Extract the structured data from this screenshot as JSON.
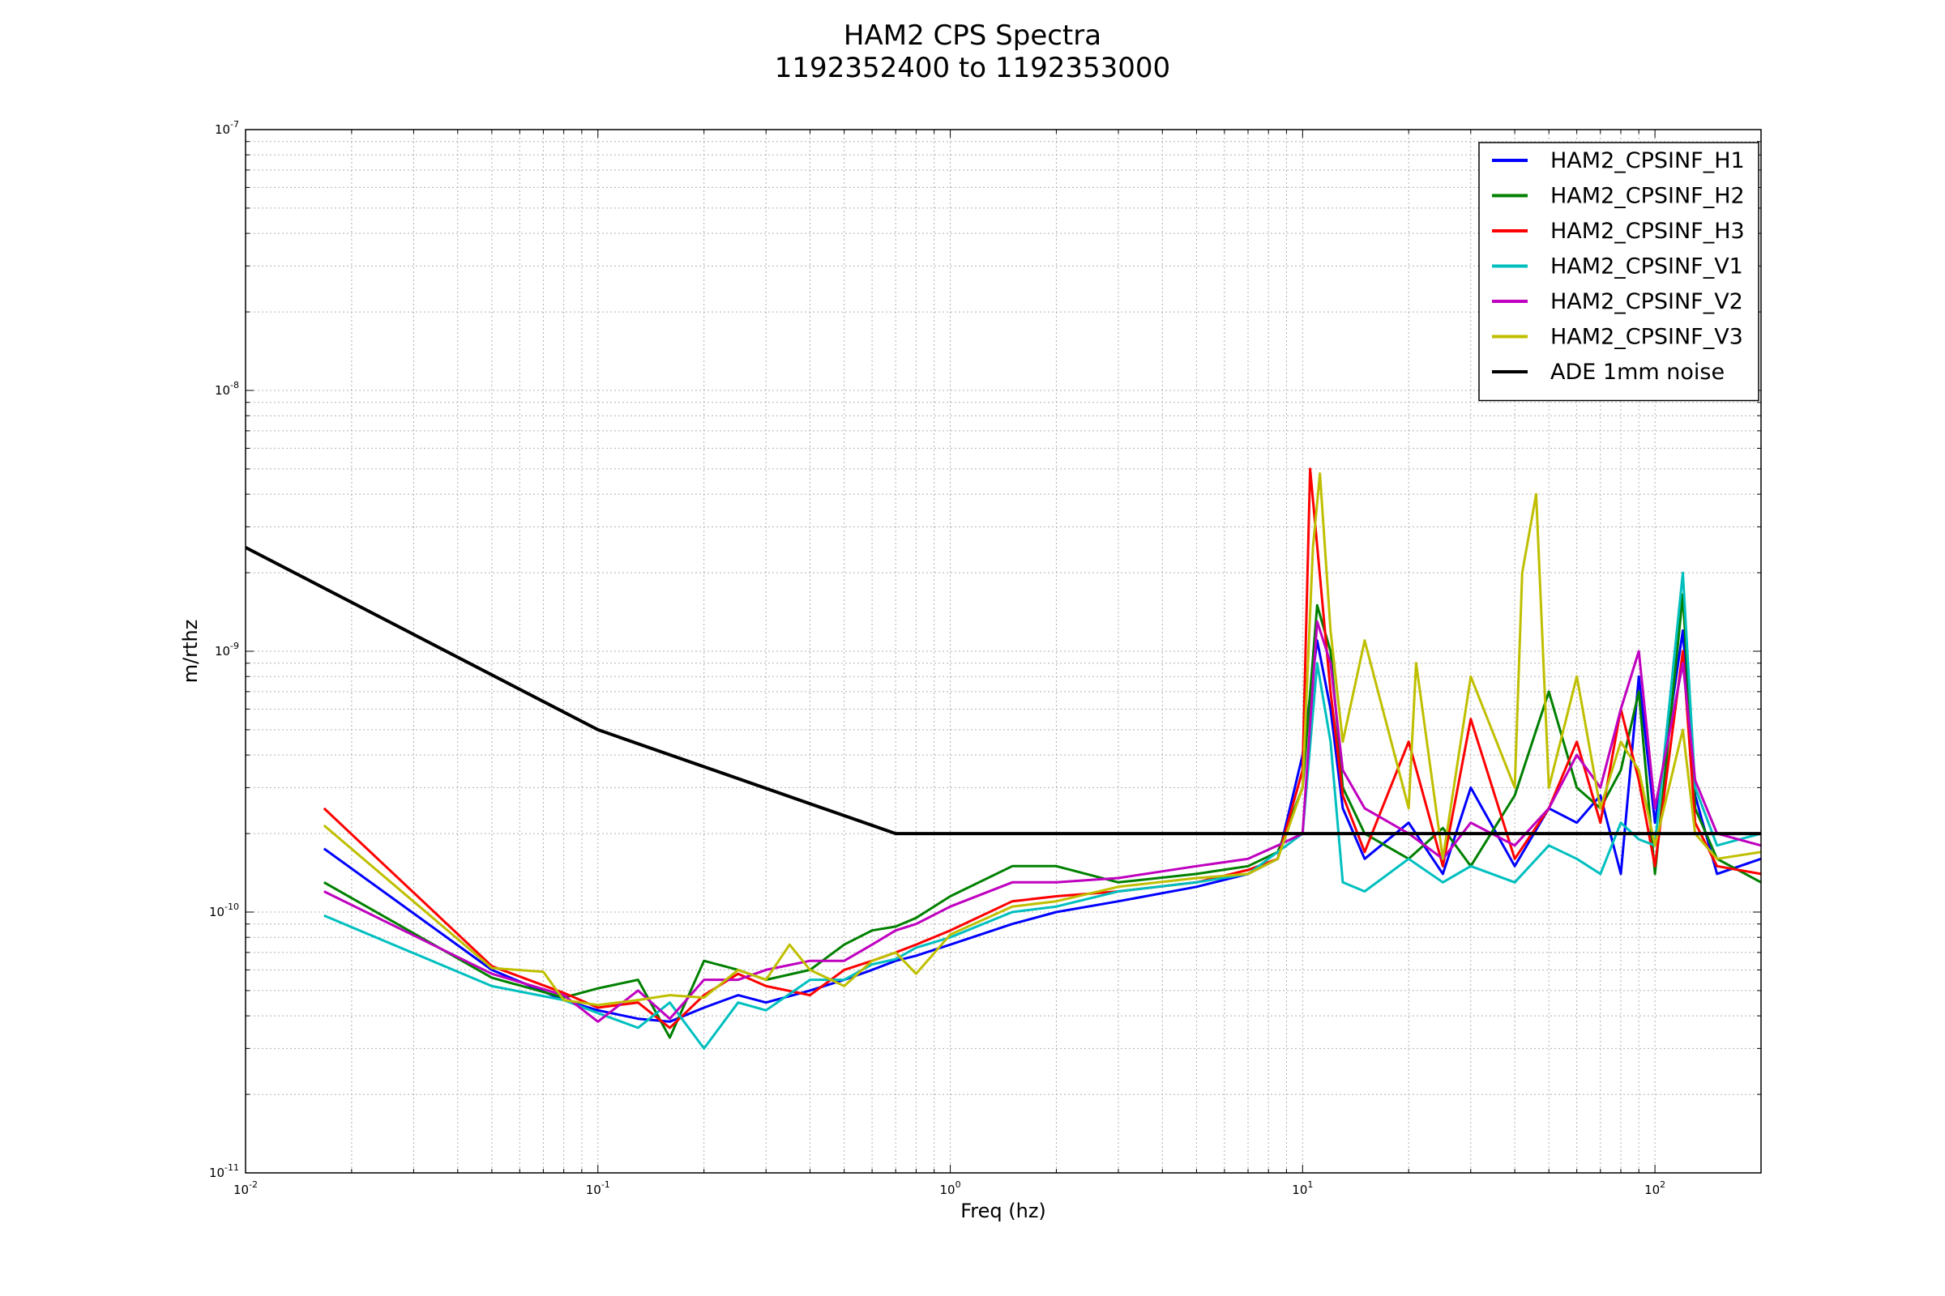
{
  "chart_data": {
    "type": "line",
    "title": "HAM2 CPS Spectra",
    "subtitle": "1192352400 to 1192353000",
    "xlabel": "Freq (hz)",
    "ylabel": "m/rthz",
    "xscale": "log",
    "yscale": "log",
    "xlim": [
      0.01,
      200
    ],
    "ylim": [
      1e-11,
      1e-07
    ],
    "x_ticks": [
      {
        "value": 0.01,
        "base": "10",
        "exp": "-2"
      },
      {
        "value": 0.1,
        "base": "10",
        "exp": "-1"
      },
      {
        "value": 1,
        "base": "10",
        "exp": "0"
      },
      {
        "value": 10,
        "base": "10",
        "exp": "1"
      },
      {
        "value": 100,
        "base": "10",
        "exp": "2"
      }
    ],
    "y_ticks": [
      {
        "value": 1e-11,
        "base": "10",
        "exp": "-11"
      },
      {
        "value": 1e-10,
        "base": "10",
        "exp": "-10"
      },
      {
        "value": 1e-09,
        "base": "10",
        "exp": "-9"
      },
      {
        "value": 1e-08,
        "base": "10",
        "exp": "-8"
      },
      {
        "value": 1e-07,
        "base": "10",
        "exp": "-7"
      }
    ],
    "grid": true,
    "legend_position": "top-right",
    "series": [
      {
        "name": "HAM2_CPSINF_H1",
        "color": "#0000ff",
        "x": [
          0.0167,
          0.05,
          0.08,
          0.1,
          0.13,
          0.16,
          0.2,
          0.25,
          0.3,
          0.4,
          0.5,
          0.6,
          0.7,
          0.8,
          1.0,
          1.5,
          2,
          3,
          5,
          7,
          8.5,
          10,
          11,
          12,
          13,
          15,
          20,
          25,
          30,
          40,
          50,
          60,
          70,
          80,
          90,
          100,
          120,
          130,
          150,
          200
        ],
        "y": [
          1.75e-10,
          6e-11,
          4.6e-11,
          4.2e-11,
          3.9e-11,
          3.8e-11,
          4.3e-11,
          4.8e-11,
          4.5e-11,
          5e-11,
          5.5e-11,
          6e-11,
          6.5e-11,
          6.8e-11,
          7.5e-11,
          9e-11,
          1e-10,
          1.1e-10,
          1.25e-10,
          1.4e-10,
          1.6e-10,
          4e-10,
          1.1e-09,
          6e-10,
          2.5e-10,
          1.6e-10,
          2.2e-10,
          1.4e-10,
          3e-10,
          1.5e-10,
          2.5e-10,
          2.2e-10,
          2.8e-10,
          1.4e-10,
          8e-10,
          2.2e-10,
          1.2e-09,
          2.8e-10,
          1.4e-10,
          1.6e-10
        ]
      },
      {
        "name": "HAM2_CPSINF_H2",
        "color": "#008000",
        "x": [
          0.0167,
          0.05,
          0.08,
          0.1,
          0.13,
          0.16,
          0.2,
          0.25,
          0.3,
          0.4,
          0.5,
          0.6,
          0.7,
          0.8,
          1.0,
          1.5,
          2,
          3,
          5,
          7,
          8.5,
          10,
          11,
          12,
          13,
          15,
          20,
          25,
          30,
          40,
          50,
          60,
          70,
          80,
          90,
          100,
          120,
          130,
          150,
          200
        ],
        "y": [
          1.3e-10,
          5.6e-11,
          4.7e-11,
          5.1e-11,
          5.5e-11,
          3.3e-11,
          6.5e-11,
          6e-11,
          5.5e-11,
          6e-11,
          7.5e-11,
          8.5e-11,
          8.8e-11,
          9.5e-11,
          1.15e-10,
          1.5e-10,
          1.5e-10,
          1.3e-10,
          1.4e-10,
          1.5e-10,
          1.7e-10,
          3e-10,
          1.5e-09,
          1e-09,
          3e-10,
          2e-10,
          1.6e-10,
          2.1e-10,
          1.5e-10,
          2.8e-10,
          7e-10,
          3e-10,
          2.5e-10,
          3.5e-10,
          7e-10,
          1.4e-10,
          1.65e-09,
          2.5e-10,
          1.6e-10,
          1.3e-10
        ]
      },
      {
        "name": "HAM2_CPSINF_H3",
        "color": "#ff0000",
        "x": [
          0.0167,
          0.05,
          0.08,
          0.1,
          0.13,
          0.16,
          0.2,
          0.25,
          0.3,
          0.4,
          0.5,
          0.6,
          0.7,
          0.8,
          1.0,
          1.5,
          2,
          3,
          5,
          7,
          8.5,
          10,
          10.5,
          12,
          13,
          15,
          20,
          25,
          30,
          40,
          50,
          60,
          70,
          80,
          90,
          100,
          120,
          130,
          150,
          200
        ],
        "y": [
          2.5e-10,
          6.2e-11,
          4.9e-11,
          4.3e-11,
          4.5e-11,
          3.6e-11,
          4.8e-11,
          5.8e-11,
          5.2e-11,
          4.8e-11,
          6e-11,
          6.5e-11,
          7e-11,
          7.5e-11,
          8.5e-11,
          1.1e-10,
          1.15e-10,
          1.2e-10,
          1.3e-10,
          1.45e-10,
          1.6e-10,
          3.5e-10,
          5e-09,
          7e-10,
          2.8e-10,
          1.7e-10,
          4.5e-10,
          1.5e-10,
          5.5e-10,
          1.6e-10,
          2.5e-10,
          4.5e-10,
          2.2e-10,
          6e-10,
          3.2e-10,
          1.5e-10,
          1e-09,
          2.2e-10,
          1.5e-10,
          1.4e-10
        ]
      },
      {
        "name": "HAM2_CPSINF_V1",
        "color": "#00bfbf",
        "x": [
          0.0167,
          0.05,
          0.08,
          0.1,
          0.13,
          0.16,
          0.2,
          0.25,
          0.3,
          0.4,
          0.5,
          0.6,
          0.7,
          0.8,
          1.0,
          1.5,
          2,
          3,
          5,
          7,
          8.5,
          10,
          11,
          12,
          13,
          15,
          20,
          25,
          30,
          40,
          50,
          60,
          70,
          80,
          90,
          100,
          120,
          130,
          150,
          200
        ],
        "y": [
          9.7e-11,
          5.2e-11,
          4.6e-11,
          4.1e-11,
          3.6e-11,
          4.5e-11,
          3e-11,
          4.5e-11,
          4.2e-11,
          5.5e-11,
          5.5e-11,
          6.3e-11,
          6.6e-11,
          7.3e-11,
          8e-11,
          1e-10,
          1.05e-10,
          1.2e-10,
          1.3e-10,
          1.4e-10,
          1.7e-10,
          2e-10,
          9e-10,
          4.5e-10,
          1.3e-10,
          1.2e-10,
          1.6e-10,
          1.3e-10,
          1.5e-10,
          1.3e-10,
          1.8e-10,
          1.6e-10,
          1.4e-10,
          2.2e-10,
          1.9e-10,
          1.8e-10,
          2e-09,
          3e-10,
          1.8e-10,
          2e-10
        ]
      },
      {
        "name": "HAM2_CPSINF_V2",
        "color": "#bf00bf",
        "x": [
          0.0167,
          0.05,
          0.08,
          0.1,
          0.13,
          0.16,
          0.2,
          0.25,
          0.3,
          0.4,
          0.5,
          0.6,
          0.7,
          0.8,
          1.0,
          1.5,
          2,
          3,
          5,
          7,
          8.5,
          10,
          11,
          12,
          13,
          15,
          20,
          25,
          30,
          40,
          50,
          60,
          70,
          80,
          90,
          100,
          120,
          130,
          150,
          200
        ],
        "y": [
          1.2e-10,
          5.8e-11,
          4.8e-11,
          3.8e-11,
          5e-11,
          3.9e-11,
          5.5e-11,
          5.5e-11,
          6e-11,
          6.5e-11,
          6.5e-11,
          7.5e-11,
          8.5e-11,
          9e-11,
          1.05e-10,
          1.3e-10,
          1.3e-10,
          1.35e-10,
          1.5e-10,
          1.6e-10,
          1.8e-10,
          2e-10,
          1.3e-09,
          9e-10,
          3.5e-10,
          2.5e-10,
          2e-10,
          1.6e-10,
          2.2e-10,
          1.8e-10,
          2.5e-10,
          4e-10,
          3e-10,
          6e-10,
          1e-09,
          2.5e-10,
          9e-10,
          3.2e-10,
          2e-10,
          1.8e-10
        ]
      },
      {
        "name": "HAM2_CPSINF_V3",
        "color": "#bfbf00",
        "x": [
          0.0167,
          0.05,
          0.07,
          0.08,
          0.1,
          0.13,
          0.16,
          0.2,
          0.25,
          0.3,
          0.35,
          0.4,
          0.5,
          0.6,
          0.7,
          0.8,
          1.0,
          1.5,
          2,
          3,
          5,
          7,
          8.5,
          10,
          10.7,
          11.2,
          12,
          13,
          15,
          20,
          21,
          25,
          30,
          40,
          42,
          46,
          50,
          60,
          70,
          80,
          90,
          100,
          120,
          130,
          150,
          200
        ],
        "y": [
          2.15e-10,
          6.1e-11,
          5.9e-11,
          4.6e-11,
          4.4e-11,
          4.6e-11,
          4.8e-11,
          4.7e-11,
          6e-11,
          5.5e-11,
          7.5e-11,
          6e-11,
          5.2e-11,
          6.5e-11,
          7e-11,
          5.8e-11,
          8.2e-11,
          1.05e-10,
          1.1e-10,
          1.25e-10,
          1.35e-10,
          1.4e-10,
          1.6e-10,
          3e-10,
          2.5e-09,
          4.8e-09,
          1.2e-09,
          4.5e-10,
          1.1e-09,
          2.5e-10,
          9e-10,
          1.6e-10,
          8e-10,
          3e-10,
          2e-09,
          4e-09,
          3e-10,
          8e-10,
          2.5e-10,
          4.5e-10,
          3.5e-10,
          1.8e-10,
          5e-10,
          2e-10,
          1.6e-10,
          1.7e-10
        ]
      },
      {
        "name": "ADE 1mm noise",
        "color": "#000000",
        "x": [
          0.01,
          0.1,
          0.7,
          200
        ],
        "y": [
          2.5e-09,
          5e-10,
          2e-10,
          2e-10
        ]
      }
    ]
  }
}
